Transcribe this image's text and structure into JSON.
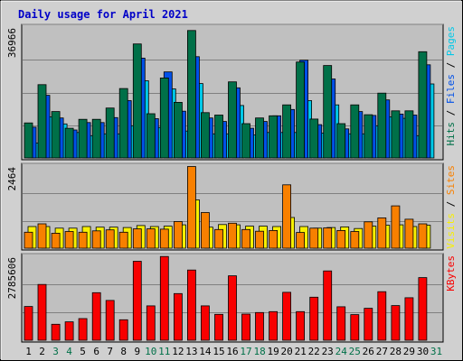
{
  "chart_data": {
    "type": "bar",
    "title": "Daily usage for April 2021",
    "days": [
      "1",
      "2",
      "3",
      "4",
      "5",
      "6",
      "7",
      "8",
      "9",
      "10",
      "11",
      "12",
      "13",
      "14",
      "15",
      "16",
      "17",
      "18",
      "19",
      "20",
      "21",
      "22",
      "23",
      "24",
      "25",
      "26",
      "27",
      "28",
      "29",
      "30",
      "31"
    ],
    "weekend_days": [
      "3",
      "4",
      "10",
      "11",
      "17",
      "18",
      "24",
      "25",
      "31"
    ],
    "panels": [
      {
        "id": "hits",
        "max_label": "36966",
        "ylim": [
          0,
          36966
        ],
        "series": [
          {
            "name": "Pages",
            "color": "#00c8e8",
            "values": [
              4200,
              11600,
              9600,
              7200,
              6300,
              6800,
              6800,
              9100,
              21800,
              8600,
              19500,
              7600,
              21000,
              6800,
              6800,
              14800,
              6500,
              7200,
              7200,
              7200,
              16200,
              7000,
              15000,
              6800,
              6800,
              9100,
              11600,
              11200,
              6300,
              20900,
              0
            ]
          },
          {
            "name": "Files",
            "color": "#0050e8",
            "values": [
              8700,
              17700,
              11300,
              7900,
              10000,
              10000,
              11400,
              16200,
              28200,
              11100,
              24300,
              13200,
              28600,
              11300,
              10300,
              19800,
              8400,
              10300,
              11900,
              13700,
              27600,
              9400,
              22300,
              8200,
              13100,
              12000,
              16400,
              12400,
              12100,
              26300,
              0
            ]
          },
          {
            "name": "Hits",
            "color": "#007048",
            "values": [
              9900,
              20700,
              13100,
              8400,
              10900,
              10900,
              14100,
              19600,
              32200,
              12500,
              22600,
              15700,
              36000,
              12800,
              12100,
              21500,
              9700,
              11300,
              11900,
              15000,
              27100,
              11000,
              26100,
              9700,
              15000,
              12200,
              18300,
              13300,
              13300,
              30000,
              0
            ]
          }
        ]
      },
      {
        "id": "visits",
        "max_label": "2464",
        "ylim": [
          0,
          2464
        ],
        "series": [
          {
            "name": "Visits",
            "color": "#f8f000",
            "values": [
              650,
              650,
              600,
              600,
              650,
              630,
              630,
              620,
              680,
              650,
              660,
              700,
              1450,
              630,
              710,
              700,
              660,
              660,
              650,
              920,
              650,
              600,
              620,
              640,
              590,
              660,
              690,
              700,
              650,
              690,
              0
            ]
          },
          {
            "name": "Sites",
            "color": "#f88000",
            "values": [
              480,
              730,
              450,
              500,
              480,
              520,
              550,
              480,
              580,
              580,
              570,
              800,
              2450,
              1070,
              560,
              750,
              560,
              510,
              530,
              1900,
              470,
              600,
              610,
              530,
              500,
              790,
              910,
              1270,
              870,
              730,
              0
            ]
          }
        ]
      },
      {
        "id": "kbytes",
        "max_label": "2785606",
        "ylim": [
          0,
          2785606
        ],
        "series": [
          {
            "name": "KBytes",
            "color": "#f80000",
            "values": [
              1120000,
              1850000,
              530000,
              610000,
              720000,
              1580000,
              1320000,
              680000,
              2620000,
              1140000,
              2780000,
              1550000,
              2330000,
              1140000,
              860000,
              2140000,
              870000,
              920000,
              950000,
              1590000,
              950000,
              1430000,
              2300000,
              1110000,
              850000,
              1060000,
              1610000,
              1150000,
              1410000,
              2080000,
              0
            ]
          }
        ]
      }
    ],
    "right_labels": {
      "hits": [
        {
          "text": "Hits",
          "color": "#007048"
        },
        {
          "text": "Files",
          "color": "#0050e8"
        },
        {
          "text": "Pages",
          "color": "#00c8e8"
        }
      ],
      "visits": [
        {
          "text": "Visits",
          "color": "#f8f000"
        },
        {
          "text": "Sites",
          "color": "#f88000"
        }
      ],
      "kbytes": [
        {
          "text": "KBytes",
          "color": "#f80000"
        }
      ]
    },
    "separator": " / ",
    "grid": true
  },
  "colors": {
    "panel_bg": "#c0c0c0",
    "frame_bg": "#d0d0d0",
    "grid": "#808080",
    "title": "#0000c8",
    "weekday_label": "#000000",
    "weekend_label": "#007048"
  }
}
